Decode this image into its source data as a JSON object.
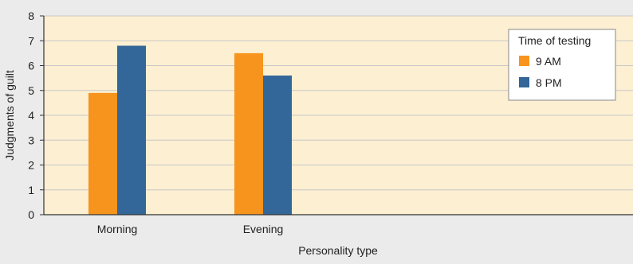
{
  "colors": {
    "page_background": "#ebebeb",
    "plot_background": "#fcefd2",
    "gridline": "#c8c8c8",
    "axis": "#333333",
    "morning_series": "#f7941d",
    "evening_series": "#336699"
  },
  "chart_data": {
    "type": "bar",
    "title": "",
    "xlabel": "Personality type",
    "ylabel": "Judgments of guilt",
    "categories": [
      "Morning",
      "Evening"
    ],
    "series": [
      {
        "name": "9 AM",
        "color": "#f7941d",
        "values": [
          4.9,
          6.5
        ]
      },
      {
        "name": "8 PM",
        "color": "#336699",
        "values": [
          6.8,
          5.6
        ]
      }
    ],
    "ylim": [
      0,
      8
    ],
    "yticks": [
      "0",
      "1",
      "2",
      "3",
      "4",
      "5",
      "6",
      "7",
      "8"
    ],
    "grid": true,
    "legend": {
      "title": "Time of testing",
      "placement": "top-right"
    }
  }
}
